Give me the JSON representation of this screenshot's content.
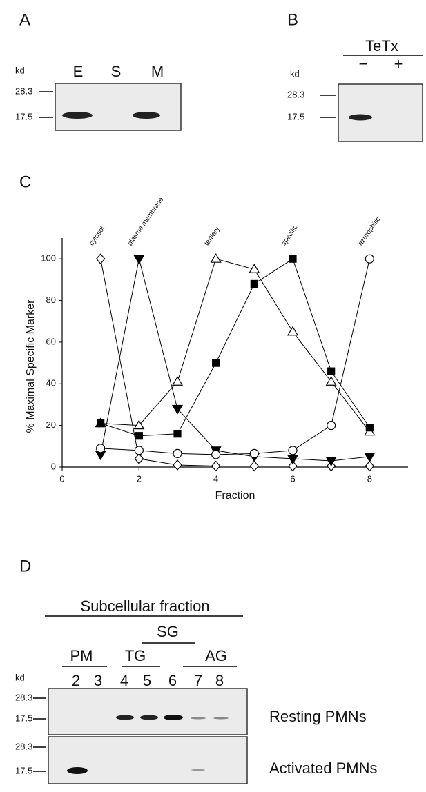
{
  "panels": {
    "A": {
      "label": "A",
      "kd": "kd",
      "markers": [
        "28.3",
        "17.5"
      ],
      "lanes": [
        "E",
        "S",
        "M"
      ]
    },
    "B": {
      "label": "B",
      "kd": "kd",
      "treatment": "TeTx",
      "markers": [
        "28.3",
        "17.5"
      ],
      "lanes": [
        "−",
        "+"
      ]
    },
    "C": {
      "label": "C"
    },
    "D": {
      "label": "D",
      "title": "Subcellular fraction",
      "groups": [
        "SG",
        "PM",
        "TG",
        "AG"
      ],
      "kd": "kd",
      "lanes": [
        "2",
        "3",
        "4",
        "5",
        "6",
        "7",
        "8"
      ],
      "blots": [
        {
          "name": "Resting PMNs",
          "markers": [
            "28.3",
            "17.5"
          ]
        },
        {
          "name": "Activated PMNs",
          "markers": [
            "28.3",
            "17.5"
          ]
        }
      ]
    }
  },
  "chart_data": {
    "type": "line",
    "xlabel": "Fraction",
    "ylabel": "% Maximal Specific Marker",
    "x": [
      1,
      2,
      3,
      4,
      5,
      6,
      7,
      8
    ],
    "series": [
      {
        "name": "cytosol",
        "marker": "diamond",
        "filled": false,
        "color": "#000000",
        "values": [
          100,
          4,
          1,
          0.5,
          0.5,
          0.5,
          0.5,
          0.5
        ]
      },
      {
        "name": "plasma membrane",
        "marker": "triangle-down",
        "filled": true,
        "color": "#000000",
        "values": [
          6,
          100,
          28,
          8,
          5,
          4,
          3,
          5
        ]
      },
      {
        "name": "tertiary",
        "marker": "triangle-up",
        "filled": false,
        "color": "#000000",
        "values": [
          21,
          20,
          41,
          100,
          95,
          65,
          41,
          17
        ]
      },
      {
        "name": "specific",
        "marker": "square",
        "filled": true,
        "color": "#000000",
        "values": [
          21,
          15,
          16,
          50,
          88,
          100,
          46,
          19
        ]
      },
      {
        "name": "azurophilic",
        "marker": "circle",
        "filled": false,
        "color": "#000000",
        "values": [
          9,
          8,
          6.5,
          6,
          6.5,
          8,
          20,
          100
        ]
      }
    ],
    "xlim": [
      0,
      9
    ],
    "ylim": [
      0,
      110
    ],
    "xticks": [
      0,
      2,
      4,
      6,
      8
    ],
    "yticks": [
      0,
      20,
      40,
      60,
      80,
      100
    ]
  }
}
